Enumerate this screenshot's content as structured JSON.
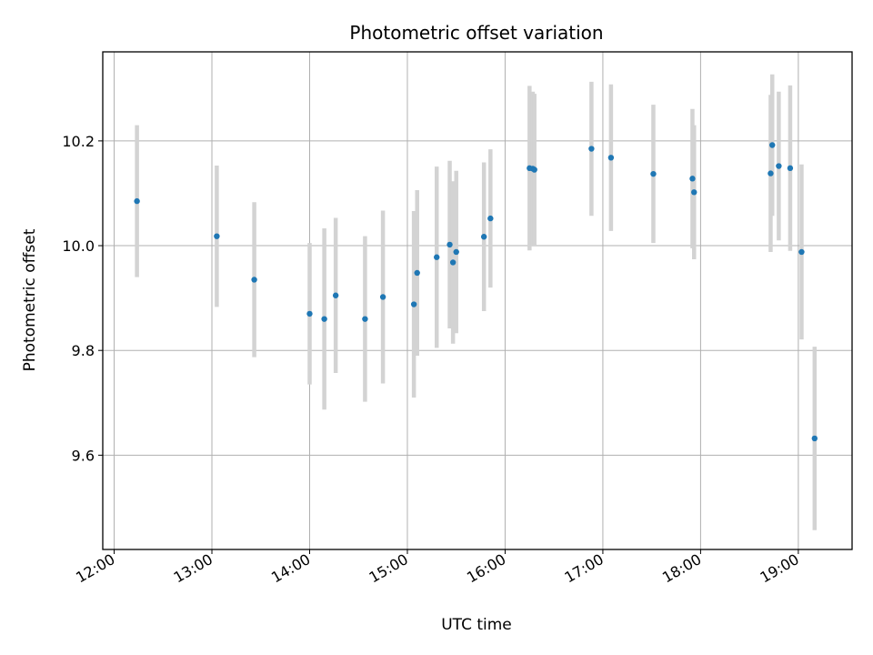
{
  "chart_data": {
    "type": "scatter",
    "title": "Photometric offset variation",
    "xlabel": "UTC time",
    "ylabel": "Photometric offset",
    "xlim": [
      "11:53",
      "19:33"
    ],
    "ylim": [
      9.42,
      10.37
    ],
    "x_ticks": [
      "12:00",
      "13:00",
      "14:00",
      "15:00",
      "16:00",
      "17:00",
      "18:00",
      "19:00"
    ],
    "y_ticks": [
      9.6,
      9.8,
      10.0,
      10.2
    ],
    "y_tick_labels": [
      "9.6",
      "9.8",
      "10.0",
      "10.2"
    ],
    "grid": true,
    "point_color": "#1f77b4",
    "errorbar_color": "#d3d3d3",
    "series": [
      {
        "points": [
          {
            "x": "12:14",
            "y": 10.085,
            "yerr": 0.145
          },
          {
            "x": "13:03",
            "y": 10.018,
            "yerr": 0.135
          },
          {
            "x": "13:26",
            "y": 9.935,
            "yerr": 0.148
          },
          {
            "x": "14:00",
            "y": 9.87,
            "yerr": 0.135
          },
          {
            "x": "14:09",
            "y": 9.86,
            "yerr": 0.173
          },
          {
            "x": "14:16",
            "y": 9.905,
            "yerr": 0.148
          },
          {
            "x": "14:34",
            "y": 9.86,
            "yerr": 0.158
          },
          {
            "x": "14:45",
            "y": 9.902,
            "yerr": 0.165
          },
          {
            "x": "15:04",
            "y": 9.888,
            "yerr": 0.178
          },
          {
            "x": "15:06",
            "y": 9.948,
            "yerr": 0.158
          },
          {
            "x": "15:18",
            "y": 9.978,
            "yerr": 0.173
          },
          {
            "x": "15:26",
            "y": 10.002,
            "yerr": 0.16
          },
          {
            "x": "15:28",
            "y": 9.968,
            "yerr": 0.155
          },
          {
            "x": "15:30",
            "y": 9.988,
            "yerr": 0.155
          },
          {
            "x": "15:47",
            "y": 10.017,
            "yerr": 0.142
          },
          {
            "x": "15:51",
            "y": 10.052,
            "yerr": 0.132
          },
          {
            "x": "16:15",
            "y": 10.148,
            "yerr": 0.157
          },
          {
            "x": "16:17",
            "y": 10.147,
            "yerr": 0.147
          },
          {
            "x": "16:18",
            "y": 10.145,
            "yerr": 0.145
          },
          {
            "x": "16:53",
            "y": 10.185,
            "yerr": 0.128
          },
          {
            "x": "17:05",
            "y": 10.168,
            "yerr": 0.14
          },
          {
            "x": "17:31",
            "y": 10.137,
            "yerr": 0.132
          },
          {
            "x": "17:55",
            "y": 10.128,
            "yerr": 0.133
          },
          {
            "x": "17:56",
            "y": 10.102,
            "yerr": 0.128
          },
          {
            "x": "18:43",
            "y": 10.138,
            "yerr": 0.15
          },
          {
            "x": "18:44",
            "y": 10.192,
            "yerr": 0.135
          },
          {
            "x": "18:48",
            "y": 10.152,
            "yerr": 0.142
          },
          {
            "x": "18:55",
            "y": 10.148,
            "yerr": 0.158
          },
          {
            "x": "19:02",
            "y": 9.988,
            "yerr": 0.167
          },
          {
            "x": "19:10",
            "y": 9.632,
            "yerr": 0.175
          }
        ]
      }
    ]
  }
}
